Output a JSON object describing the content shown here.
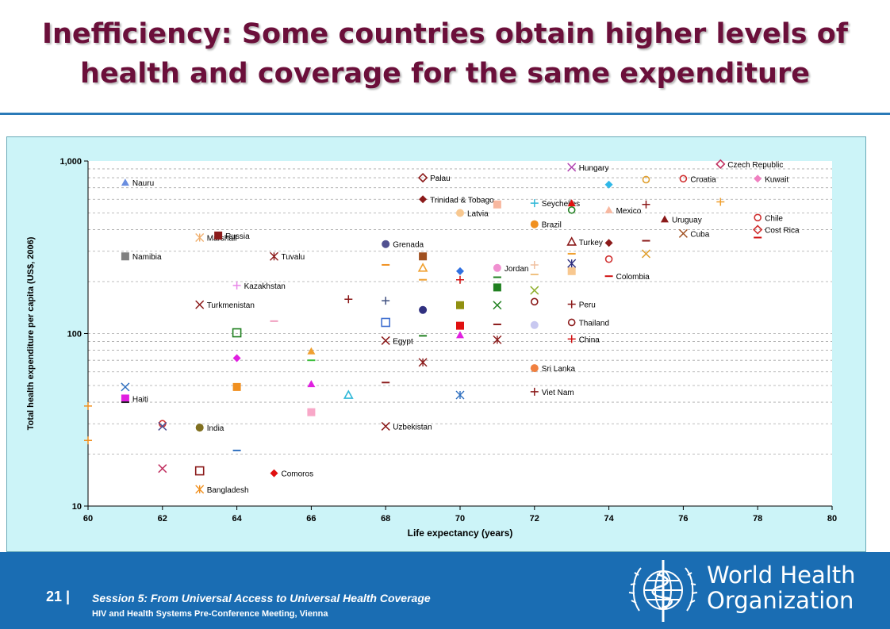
{
  "slide": {
    "title_line1": "Inefficiency: Some countries obtain higher levels of",
    "title_line2": "health and coverage for the same expenditure",
    "slide_number": "21 |",
    "session": "Session 5: From Universal Access to Universal Health Coverage",
    "meeting": "HIV and Health Systems Pre-Conference Meeting, Vienna",
    "org_line1": "World Health",
    "org_line2": "Organization",
    "emblem_icon": "who-emblem-icon",
    "colors": {
      "title": "#6b0f3a",
      "accent_rule": "#2a7ab8",
      "footer": "#1a6db3",
      "chart_panel": "#ccf4f8"
    }
  },
  "chart_data": {
    "type": "scatter",
    "xlabel": "Life expectancy (years)",
    "ylabel": "Total health expenditure per capita (US$, 2006)",
    "xlim": [
      60,
      80
    ],
    "ylim": [
      10,
      1000
    ],
    "y_scale": "log",
    "x_ticks": [
      60,
      62,
      64,
      66,
      68,
      70,
      72,
      74,
      76,
      78,
      80
    ],
    "y_ticks": [
      {
        "v": 10,
        "label": "10"
      },
      {
        "v": 100,
        "label": "100"
      },
      {
        "v": 1000,
        "label": "1,000"
      }
    ],
    "grid": "horizontal-dashed",
    "points": [
      {
        "x": 61,
        "y": 750,
        "m": "tri",
        "c": "#6a8ee0",
        "label": "Nauru"
      },
      {
        "x": 63,
        "y": 360,
        "m": "star",
        "c": "#f0b070",
        "label": "Marshall"
      },
      {
        "x": 61,
        "y": 280,
        "m": "sq",
        "c": "#808080",
        "label": "Namibia"
      },
      {
        "x": 65,
        "y": 280,
        "m": "star",
        "c": "#8b1a1a",
        "label": "Tuvalu"
      },
      {
        "x": 64,
        "y": 190,
        "m": "plus",
        "c": "#e888e8",
        "label": "Kazakhstan"
      },
      {
        "x": 63,
        "y": 147,
        "m": "x",
        "c": "#8b1a1a",
        "label": "Turkmenistan"
      },
      {
        "x": 63.5,
        "y": 370,
        "m": "sq",
        "c": "#8b1a1a",
        "label": "Russia"
      },
      {
        "x": 68,
        "y": 330,
        "m": "circ",
        "c": "#505090",
        "label": "Grenada"
      },
      {
        "x": 69,
        "y": 800,
        "m": "dmo",
        "c": "#8b1a1a",
        "label": "Palau"
      },
      {
        "x": 69,
        "y": 600,
        "m": "dia",
        "c": "#8b1a1a",
        "label": "Trinidad & Tobago"
      },
      {
        "x": 70,
        "y": 500,
        "m": "circ",
        "c": "#f8c890",
        "label": "Latvia"
      },
      {
        "x": 71,
        "y": 240,
        "m": "circ",
        "c": "#f090d0",
        "label": "Jordan"
      },
      {
        "x": 72,
        "y": 570,
        "m": "plus",
        "c": "#30b8d8",
        "label": "Seychelles"
      },
      {
        "x": 72,
        "y": 430,
        "m": "circ",
        "c": "#f09020",
        "label": "Brazil"
      },
      {
        "x": 73,
        "y": 920,
        "m": "x",
        "c": "#b040b0",
        "label": "Hungary"
      },
      {
        "x": 73,
        "y": 340,
        "m": "tro",
        "c": "#8b1a1a",
        "label": "Turkey"
      },
      {
        "x": 74,
        "y": 520,
        "m": "tri",
        "c": "#f8b8a0",
        "label": "Mexico"
      },
      {
        "x": 75.5,
        "y": 460,
        "m": "tri",
        "c": "#8b1a1a",
        "label": "Uruguay"
      },
      {
        "x": 76,
        "y": 790,
        "m": "circo",
        "c": "#d03030",
        "label": "Croatia"
      },
      {
        "x": 77,
        "y": 960,
        "m": "dmo",
        "c": "#c03060",
        "label": "Czech Republic"
      },
      {
        "x": 78,
        "y": 790,
        "m": "dia",
        "c": "#f080c0",
        "label": "Kuwait"
      },
      {
        "x": 78,
        "y": 470,
        "m": "circo",
        "c": "#d03030",
        "label": "Chile"
      },
      {
        "x": 78,
        "y": 400,
        "m": "dmo",
        "c": "#d03030",
        "label": "Cost Rica"
      },
      {
        "x": 76,
        "y": 380,
        "m": "x",
        "c": "#a05020",
        "label": "Cuba"
      },
      {
        "x": 74,
        "y": 215,
        "m": "dash",
        "c": "#d01010",
        "label": "Colombia"
      },
      {
        "x": 73,
        "y": 148,
        "m": "plus",
        "c": "#8b1a1a",
        "label": "Peru"
      },
      {
        "x": 73,
        "y": 116,
        "m": "circo",
        "c": "#8b1a1a",
        "label": "Thailand"
      },
      {
        "x": 73,
        "y": 93,
        "m": "plus",
        "c": "#d01010",
        "label": "China"
      },
      {
        "x": 68,
        "y": 91,
        "m": "x",
        "c": "#8b1a1a",
        "label": "Egypt"
      },
      {
        "x": 72,
        "y": 63,
        "m": "circ",
        "c": "#f08040",
        "label": "Sri Lanka"
      },
      {
        "x": 72,
        "y": 46,
        "m": "plus",
        "c": "#8b1a1a",
        "label": "Viet Nam"
      },
      {
        "x": 61,
        "y": 42,
        "m": "sq",
        "c": "#e020e0",
        "label": "Haiti"
      },
      {
        "x": 63,
        "y": 28.5,
        "m": "circ",
        "c": "#807020",
        "label": "India"
      },
      {
        "x": 68,
        "y": 29,
        "m": "x",
        "c": "#8b1a1a",
        "label": "Uzbekistan"
      },
      {
        "x": 65,
        "y": 15.5,
        "m": "dia",
        "c": "#e01010",
        "label": "Comoros"
      },
      {
        "x": 63,
        "y": 12.5,
        "m": "star",
        "c": "#f09020",
        "label": "Bangladesh"
      },
      {
        "x": 61,
        "y": 49,
        "m": "x",
        "c": "#3070c0"
      },
      {
        "x": 60,
        "y": 38,
        "m": "plus",
        "c": "#f09020"
      },
      {
        "x": 60,
        "y": 24,
        "m": "plus",
        "c": "#f09020"
      },
      {
        "x": 61,
        "y": 40,
        "m": "dash",
        "c": "#202020"
      },
      {
        "x": 62,
        "y": 30,
        "m": "circo",
        "c": "#d03030"
      },
      {
        "x": 62,
        "y": 29,
        "m": "x",
        "c": "#505090"
      },
      {
        "x": 62,
        "y": 16.5,
        "m": "x",
        "c": "#c03060"
      },
      {
        "x": 63,
        "y": 16,
        "m": "sqo",
        "c": "#8b1a1a"
      },
      {
        "x": 64,
        "y": 21,
        "m": "dash",
        "c": "#3070c0"
      },
      {
        "x": 64,
        "y": 49,
        "m": "sq",
        "c": "#f09020"
      },
      {
        "x": 64,
        "y": 72,
        "m": "dia",
        "c": "#e020e0"
      },
      {
        "x": 64,
        "y": 101,
        "m": "sqo",
        "c": "#208020"
      },
      {
        "x": 65,
        "y": 118,
        "m": "dash",
        "c": "#f0a0c0"
      },
      {
        "x": 66,
        "y": 35,
        "m": "sq",
        "c": "#f8a8c8"
      },
      {
        "x": 66,
        "y": 51,
        "m": "tri",
        "c": "#e020e0"
      },
      {
        "x": 66,
        "y": 70,
        "m": "dash",
        "c": "#40c040"
      },
      {
        "x": 66,
        "y": 79,
        "m": "tri",
        "c": "#f0a030"
      },
      {
        "x": 67,
        "y": 44,
        "m": "tro",
        "c": "#30b8d8"
      },
      {
        "x": 67,
        "y": 158,
        "m": "plus",
        "c": "#8b1a1a"
      },
      {
        "x": 68,
        "y": 52,
        "m": "dash",
        "c": "#8b1a1a"
      },
      {
        "x": 68,
        "y": 116,
        "m": "sqo",
        "c": "#4070d0"
      },
      {
        "x": 68,
        "y": 155,
        "m": "plus",
        "c": "#405080"
      },
      {
        "x": 68,
        "y": 250,
        "m": "dash",
        "c": "#f09020"
      },
      {
        "x": 69,
        "y": 68,
        "m": "star",
        "c": "#8b1a1a"
      },
      {
        "x": 69,
        "y": 97,
        "m": "dash",
        "c": "#208020"
      },
      {
        "x": 69,
        "y": 137,
        "m": "circ",
        "c": "#303080"
      },
      {
        "x": 69,
        "y": 205,
        "m": "dash",
        "c": "#f0a030"
      },
      {
        "x": 69,
        "y": 240,
        "m": "tro",
        "c": "#f0a030"
      },
      {
        "x": 69,
        "y": 280,
        "m": "sq",
        "c": "#a05020"
      },
      {
        "x": 70,
        "y": 44,
        "m": "star",
        "c": "#3070c0"
      },
      {
        "x": 70,
        "y": 98,
        "m": "tri",
        "c": "#e020e0"
      },
      {
        "x": 70,
        "y": 111,
        "m": "sq",
        "c": "#e01010"
      },
      {
        "x": 70,
        "y": 146,
        "m": "sq",
        "c": "#909010"
      },
      {
        "x": 70,
        "y": 205,
        "m": "plus",
        "c": "#d01010"
      },
      {
        "x": 70,
        "y": 230,
        "m": "dia",
        "c": "#3070e0"
      },
      {
        "x": 71,
        "y": 92,
        "m": "star",
        "c": "#8b1a1a"
      },
      {
        "x": 71,
        "y": 113,
        "m": "dash",
        "c": "#8b1a1a"
      },
      {
        "x": 71,
        "y": 146,
        "m": "x",
        "c": "#208020"
      },
      {
        "x": 71,
        "y": 185,
        "m": "sq",
        "c": "#208020"
      },
      {
        "x": 71,
        "y": 212,
        "m": "dash",
        "c": "#208020"
      },
      {
        "x": 71,
        "y": 560,
        "m": "sq",
        "c": "#f8b8a0"
      },
      {
        "x": 72,
        "y": 112,
        "m": "circ",
        "c": "#c8c8f0"
      },
      {
        "x": 72,
        "y": 153,
        "m": "circo",
        "c": "#8b1a1a"
      },
      {
        "x": 72,
        "y": 178,
        "m": "x",
        "c": "#90b030"
      },
      {
        "x": 72,
        "y": 220,
        "m": "dash",
        "c": "#f0c080"
      },
      {
        "x": 72,
        "y": 250,
        "m": "plus",
        "c": "#f0c0a0"
      },
      {
        "x": 73,
        "y": 230,
        "m": "sq",
        "c": "#f8c890"
      },
      {
        "x": 73,
        "y": 255,
        "m": "star",
        "c": "#303080"
      },
      {
        "x": 73,
        "y": 290,
        "m": "dash",
        "c": "#f0a030"
      },
      {
        "x": 73,
        "y": 520,
        "m": "circo",
        "c": "#208020"
      },
      {
        "x": 73,
        "y": 570,
        "m": "tri",
        "c": "#e01010"
      },
      {
        "x": 74,
        "y": 270,
        "m": "circo",
        "c": "#d03030"
      },
      {
        "x": 74,
        "y": 335,
        "m": "dia",
        "c": "#8b1a1a"
      },
      {
        "x": 74,
        "y": 730,
        "m": "dia",
        "c": "#30b8e8"
      },
      {
        "x": 75,
        "y": 290,
        "m": "x",
        "c": "#e0a030"
      },
      {
        "x": 75,
        "y": 345,
        "m": "dash",
        "c": "#8b1a1a"
      },
      {
        "x": 75,
        "y": 560,
        "m": "plus",
        "c": "#8b1a1a"
      },
      {
        "x": 75,
        "y": 780,
        "m": "circo",
        "c": "#e0a030"
      },
      {
        "x": 77,
        "y": 580,
        "m": "plus",
        "c": "#f0a030"
      },
      {
        "x": 78,
        "y": 360,
        "m": "dash",
        "c": "#d01010"
      }
    ]
  }
}
